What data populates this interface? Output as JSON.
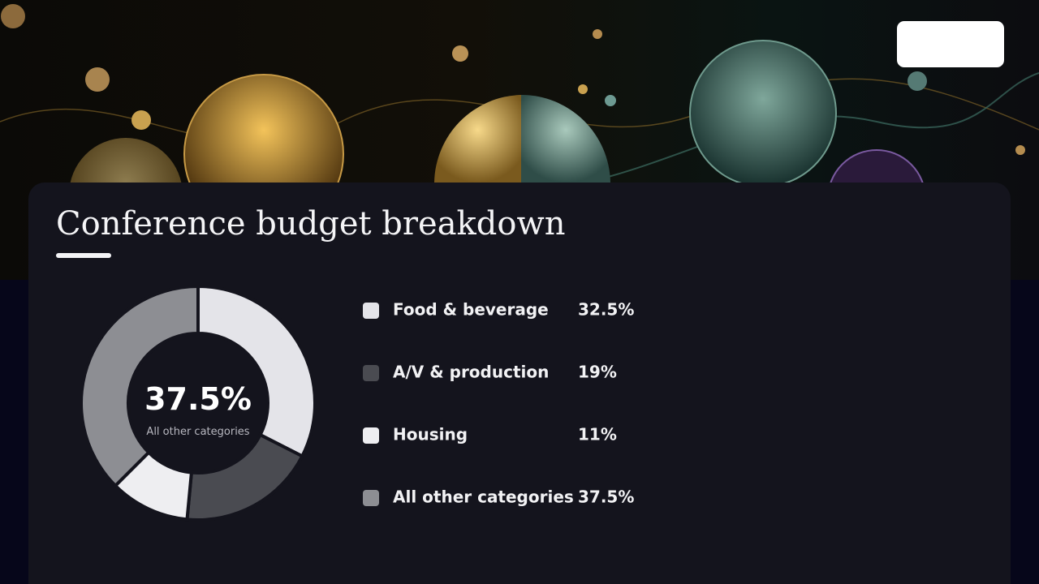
{
  "chart_data": {
    "type": "pie",
    "title": "Conference budget breakdown",
    "categories": [
      "Food & beverage",
      "A/V & production",
      "Housing",
      "All other categories"
    ],
    "values": [
      32.5,
      19,
      11,
      37.5
    ],
    "value_labels": [
      "32.5%",
      "19%",
      "11%",
      "37.5%"
    ],
    "colors": [
      "#e4e4e9",
      "#4a4b51",
      "#eeeef1",
      "#8d8e93"
    ],
    "center_index": 3
  }
}
